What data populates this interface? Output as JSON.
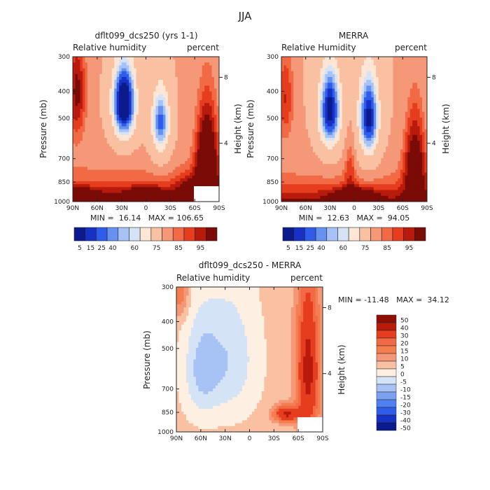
{
  "figure_title": "JJA",
  "colors": {
    "abs_scale": [
      "#0b1a8c",
      "#1730c6",
      "#2f5ce8",
      "#6691f0",
      "#a7c2f4",
      "#d4e3f6",
      "#fde6d5",
      "#f9c1a2",
      "#f59878",
      "#f26a45",
      "#e63d1f",
      "#b81a0c",
      "#7a0b06"
    ],
    "diff_scale": [
      "#0b1a8c",
      "#1730c6",
      "#2f5ce8",
      "#4f7ff0",
      "#7da1f2",
      "#a7c2f4",
      "#d4e3f6",
      "#fdf0e3",
      "#f9c1a2",
      "#f59878",
      "#f57e4f",
      "#f26a45",
      "#e63d1f",
      "#b81a0c",
      "#8e0f06"
    ]
  },
  "chart_data": [
    {
      "id": "model",
      "type": "heatmap",
      "title": "dflt099_dcs250 (yrs 1-1)",
      "left_label": "Relative humidity",
      "right_label": "percent",
      "ylabel": "Pressure (mb)",
      "ylabel_right": "Height (km)",
      "x_ticks": [
        "90N",
        "60N",
        "30N",
        "0",
        "30S",
        "60S",
        "90S"
      ],
      "x_range": [
        90,
        -90
      ],
      "y_ticks": [
        "300",
        "400",
        "500",
        "700",
        "850",
        "1000"
      ],
      "y_ticks_right": [
        "8",
        "4"
      ],
      "ylim": [
        1000,
        300
      ],
      "min_max_text": "MIN =  16.14   MAX = 106.65",
      "colorbar_labels": [
        "5",
        "15",
        "25",
        "40",
        "60",
        "75",
        "85",
        "95"
      ],
      "levels": [
        5,
        10,
        15,
        20,
        25,
        30,
        40,
        60,
        70,
        75,
        80,
        85,
        90,
        95
      ],
      "blobs": [
        {
          "lat": 27,
          "p": 440,
          "sx": 16,
          "sy": 160,
          "a": -70
        },
        {
          "lat": -18,
          "p": 520,
          "sx": 13,
          "sy": 170,
          "a": -50
        },
        {
          "lat": -75,
          "p": 700,
          "sx": 14,
          "sy": 320,
          "a": 35
        },
        {
          "lat": 85,
          "p": 400,
          "sx": 12,
          "sy": 180,
          "a": 25
        },
        {
          "lat": 0,
          "p": 950,
          "sx": 25,
          "sy": 60,
          "a": 20
        },
        {
          "lat": 80,
          "p": 980,
          "sx": 22,
          "sy": 70,
          "a": 30
        },
        {
          "lat": -55,
          "p": 920,
          "sx": 18,
          "sy": 120,
          "a": 15
        }
      ],
      "base": 62
    },
    {
      "id": "merra",
      "type": "heatmap",
      "title": "MERRA",
      "left_label": "Relative Humidity",
      "right_label": "percent",
      "ylabel": "Pressure (mb)",
      "ylabel_right": "Height (km)",
      "x_ticks": [
        "90N",
        "60N",
        "30N",
        "0",
        "30S",
        "60S",
        "90S"
      ],
      "x_range": [
        90,
        -90
      ],
      "y_ticks": [
        "300",
        "400",
        "500",
        "700",
        "850",
        "1000"
      ],
      "y_ticks_right": [
        "8",
        "4"
      ],
      "ylim": [
        1000,
        300
      ],
      "min_max_text": "MIN =  12.63   MAX =  94.05",
      "colorbar_labels": [
        "5",
        "15",
        "25",
        "40",
        "60",
        "75",
        "85",
        "95"
      ],
      "levels": [
        5,
        10,
        15,
        20,
        25,
        30,
        40,
        60,
        70,
        75,
        80,
        85,
        90,
        95
      ],
      "blobs": [
        {
          "lat": 30,
          "p": 470,
          "sx": 15,
          "sy": 180,
          "a": -60
        },
        {
          "lat": -18,
          "p": 500,
          "sx": 14,
          "sy": 200,
          "a": -58
        },
        {
          "lat": -75,
          "p": 700,
          "sx": 14,
          "sy": 320,
          "a": 28
        },
        {
          "lat": 85,
          "p": 420,
          "sx": 12,
          "sy": 180,
          "a": 20
        },
        {
          "lat": 5,
          "p": 700,
          "sx": 7,
          "sy": 250,
          "a": 12
        },
        {
          "lat": 0,
          "p": 950,
          "sx": 25,
          "sy": 60,
          "a": 20
        }
      ],
      "base": 60
    },
    {
      "id": "diff",
      "type": "heatmap",
      "title": "dflt099_dcs250 - MERRA",
      "left_label": "Relative humidity",
      "right_label": "percent",
      "ylabel": "Pressure (mb)",
      "ylabel_right": "Height (km)",
      "x_ticks": [
        "90N",
        "60N",
        "30N",
        "0",
        "30S",
        "60S",
        "90S"
      ],
      "x_range": [
        90,
        -90
      ],
      "y_ticks": [
        "300",
        "400",
        "500",
        "700",
        "850",
        "1000"
      ],
      "y_ticks_right": [
        "8",
        "4"
      ],
      "ylim": [
        1000,
        300
      ],
      "min_max_text": "MIN = -11.48   MAX =  34.12",
      "colorbar_labels": [
        "50",
        "40",
        "30",
        "20",
        "15",
        "10",
        "5",
        "0",
        "-5",
        "-10",
        "-15",
        "-20",
        "-30",
        "-40",
        "-50"
      ],
      "levels": [
        -50,
        -40,
        -30,
        -20,
        -15,
        -10,
        -5,
        0,
        5,
        10,
        15,
        20,
        30,
        40,
        50
      ],
      "blobs": [
        {
          "lat": -72,
          "p": 600,
          "sx": 14,
          "sy": 380,
          "a": 18
        },
        {
          "lat": -45,
          "p": 860,
          "sx": 15,
          "sy": 60,
          "a": 18
        },
        {
          "lat": 85,
          "p": 320,
          "sx": 10,
          "sy": 60,
          "a": 15
        },
        {
          "lat": 25,
          "p": 550,
          "sx": 35,
          "sy": 300,
          "a": -7
        },
        {
          "lat": 60,
          "p": 600,
          "sx": 22,
          "sy": 260,
          "a": 4
        }
      ],
      "base": 2
    }
  ]
}
